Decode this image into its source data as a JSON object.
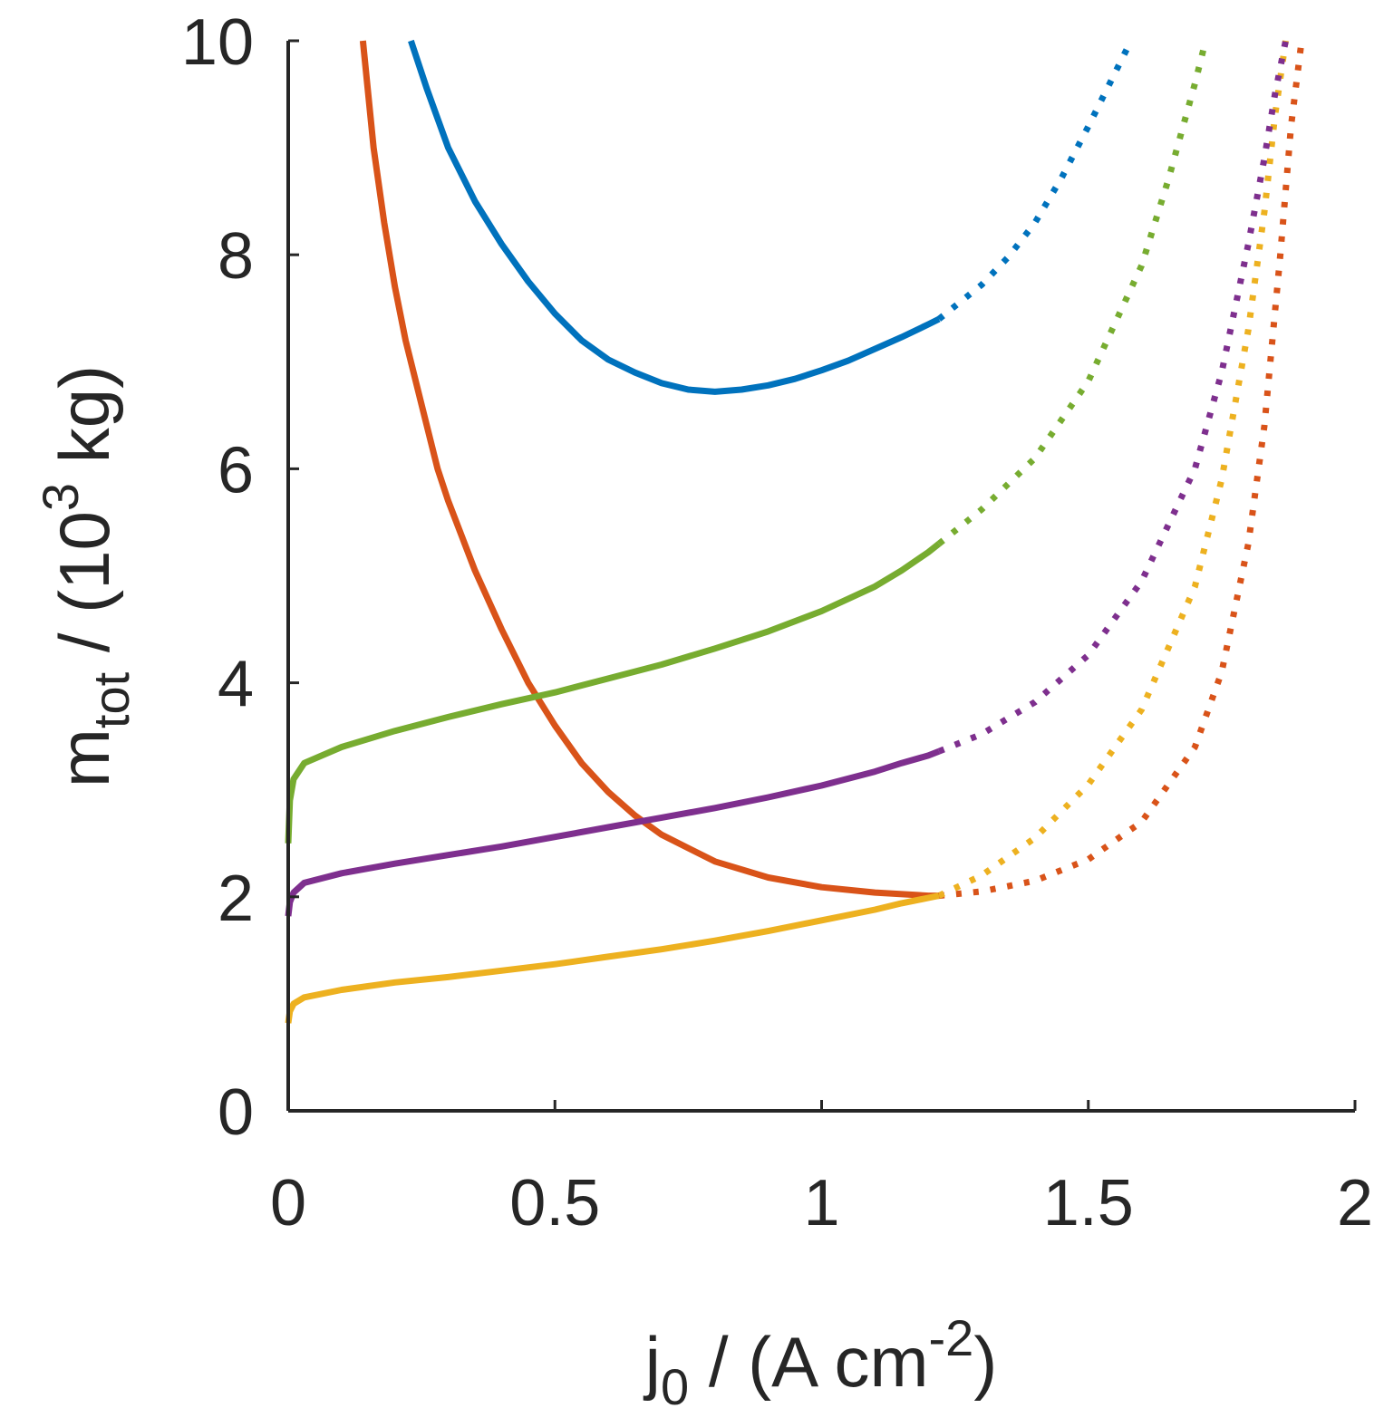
{
  "chart_data": {
    "type": "line",
    "title": "",
    "xlabel": {
      "base": "j",
      "sub": "0",
      "unit_prefix": " / (A cm",
      "sup": "-2",
      "unit_suffix": ")"
    },
    "ylabel": {
      "base": "m",
      "sub": "tot",
      "unit_prefix": " / (10",
      "sup": "3",
      "unit_suffix": " kg)"
    },
    "xlim": [
      0,
      2
    ],
    "ylim": [
      0,
      10
    ],
    "xticks": [
      0,
      0.5,
      1,
      1.5,
      2
    ],
    "xtick_labels": [
      "0",
      "0.5",
      "1",
      "1.5",
      "2"
    ],
    "yticks": [
      0,
      2,
      4,
      6,
      8,
      10
    ],
    "ytick_labels": [
      "0",
      "2",
      "4",
      "6",
      "8",
      "10"
    ],
    "grid": false,
    "series": [
      {
        "name": "blue",
        "color": "#0072BD",
        "solid": {
          "x": [
            0.23,
            0.26,
            0.3,
            0.35,
            0.4,
            0.45,
            0.5,
            0.55,
            0.6,
            0.65,
            0.7,
            0.75,
            0.8,
            0.85,
            0.9,
            0.95,
            1.0,
            1.05,
            1.1,
            1.15,
            1.2,
            1.22
          ],
          "y": [
            10.0,
            9.55,
            9.0,
            8.5,
            8.1,
            7.75,
            7.45,
            7.2,
            7.02,
            6.9,
            6.8,
            6.74,
            6.72,
            6.74,
            6.78,
            6.84,
            6.92,
            7.01,
            7.12,
            7.23,
            7.35,
            7.4
          ]
        },
        "dotted": {
          "x": [
            1.22,
            1.3,
            1.35,
            1.4,
            1.45,
            1.5,
            1.55,
            1.58
          ],
          "y": [
            7.4,
            7.72,
            7.98,
            8.3,
            8.72,
            9.2,
            9.7,
            10.0
          ]
        }
      },
      {
        "name": "orange",
        "color": "#D95319",
        "solid": {
          "x": [
            0.14,
            0.16,
            0.18,
            0.2,
            0.22,
            0.25,
            0.28,
            0.3,
            0.35,
            0.4,
            0.45,
            0.5,
            0.55,
            0.6,
            0.65,
            0.7,
            0.8,
            0.9,
            1.0,
            1.1,
            1.2,
            1.22
          ],
          "y": [
            10.0,
            9.0,
            8.3,
            7.7,
            7.2,
            6.6,
            6.0,
            5.7,
            5.05,
            4.5,
            4.0,
            3.6,
            3.25,
            2.98,
            2.76,
            2.58,
            2.33,
            2.18,
            2.09,
            2.04,
            2.01,
            2.01
          ]
        },
        "dotted": {
          "x": [
            1.22,
            1.3,
            1.4,
            1.5,
            1.6,
            1.7,
            1.75,
            1.8,
            1.83,
            1.86,
            1.88,
            1.9
          ],
          "y": [
            2.01,
            2.05,
            2.15,
            2.35,
            2.7,
            3.4,
            4.1,
            5.3,
            6.4,
            8.0,
            9.2,
            10.0
          ]
        }
      },
      {
        "name": "yellow",
        "color": "#EDB120",
        "solid": {
          "x": [
            0,
            0.003,
            0.01,
            0.03,
            0.1,
            0.2,
            0.3,
            0.4,
            0.5,
            0.6,
            0.7,
            0.8,
            0.9,
            1.0,
            1.1,
            1.15,
            1.2,
            1.22
          ],
          "y": [
            0.82,
            0.93,
            1.0,
            1.06,
            1.13,
            1.2,
            1.25,
            1.31,
            1.37,
            1.44,
            1.51,
            1.59,
            1.68,
            1.78,
            1.88,
            1.94,
            1.99,
            2.01
          ]
        },
        "dotted": {
          "x": [
            1.22,
            1.3,
            1.4,
            1.5,
            1.6,
            1.7,
            1.75,
            1.8,
            1.83,
            1.85,
            1.87
          ],
          "y": [
            2.01,
            2.2,
            2.55,
            3.05,
            3.75,
            4.9,
            5.9,
            7.3,
            8.4,
            9.3,
            10.0
          ]
        }
      },
      {
        "name": "purple",
        "color": "#7E2F8E",
        "solid": {
          "x": [
            0,
            0.003,
            0.01,
            0.03,
            0.1,
            0.2,
            0.3,
            0.4,
            0.5,
            0.6,
            0.7,
            0.8,
            0.9,
            1.0,
            1.1,
            1.15,
            1.2,
            1.22
          ],
          "y": [
            1.82,
            1.95,
            2.04,
            2.13,
            2.22,
            2.31,
            2.39,
            2.47,
            2.56,
            2.65,
            2.74,
            2.83,
            2.93,
            3.04,
            3.17,
            3.25,
            3.32,
            3.36
          ]
        },
        "dotted": {
          "x": [
            1.22,
            1.3,
            1.4,
            1.5,
            1.6,
            1.7,
            1.75,
            1.8,
            1.83,
            1.85,
            1.87
          ],
          "y": [
            3.36,
            3.52,
            3.82,
            4.26,
            4.95,
            6.0,
            6.9,
            8.1,
            8.9,
            9.5,
            10.0
          ]
        }
      },
      {
        "name": "green",
        "color": "#77AC30",
        "solid": {
          "x": [
            0,
            0.003,
            0.01,
            0.03,
            0.1,
            0.2,
            0.3,
            0.4,
            0.5,
            0.6,
            0.7,
            0.8,
            0.9,
            1.0,
            1.1,
            1.15,
            1.2,
            1.22
          ],
          "y": [
            2.5,
            2.9,
            3.1,
            3.25,
            3.4,
            3.55,
            3.68,
            3.8,
            3.91,
            4.04,
            4.17,
            4.32,
            4.48,
            4.67,
            4.9,
            5.05,
            5.22,
            5.3
          ]
        },
        "dotted": {
          "x": [
            1.22,
            1.3,
            1.4,
            1.5,
            1.6,
            1.65,
            1.7,
            1.72
          ],
          "y": [
            5.3,
            5.62,
            6.1,
            6.82,
            7.9,
            8.7,
            9.6,
            10.0
          ]
        }
      }
    ]
  }
}
